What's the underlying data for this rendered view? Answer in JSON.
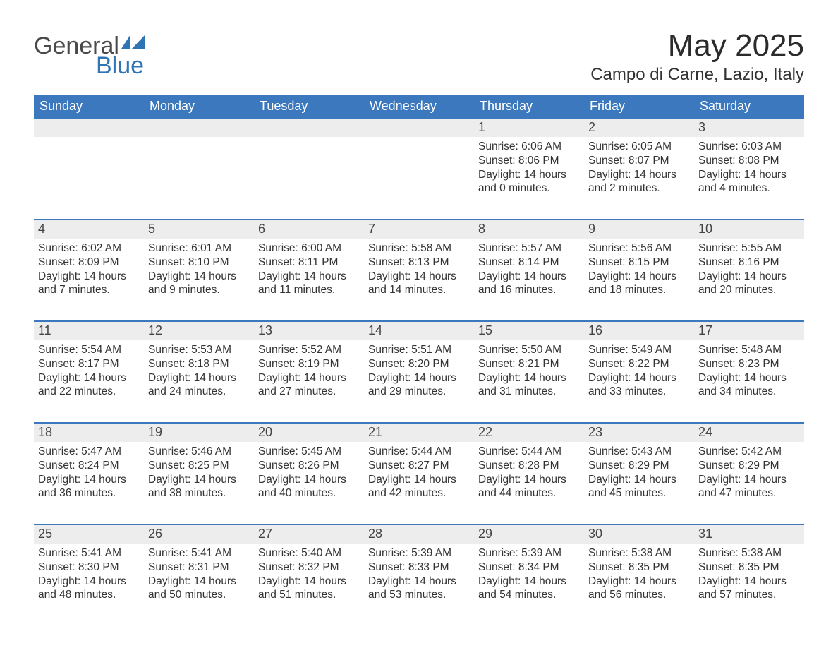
{
  "brand": {
    "word1": "General",
    "word2": "Blue",
    "text_color": "#4a4a4a",
    "accent_color": "#2f74b5"
  },
  "title": "May 2025",
  "location": "Campo di Carne, Lazio, Italy",
  "colors": {
    "header_bg": "#3b78bd",
    "header_text": "#ffffff",
    "daynum_bg": "#ededed",
    "rule": "#3b78bd",
    "body_text": "#333333",
    "page_bg": "#ffffff"
  },
  "typography": {
    "title_fontsize": 44,
    "location_fontsize": 24,
    "weekday_fontsize": 18,
    "daynum_fontsize": 18,
    "body_fontsize": 15.5
  },
  "weekdays": [
    "Sunday",
    "Monday",
    "Tuesday",
    "Wednesday",
    "Thursday",
    "Friday",
    "Saturday"
  ],
  "weeks": [
    [
      {
        "n": "",
        "lines": []
      },
      {
        "n": "",
        "lines": []
      },
      {
        "n": "",
        "lines": []
      },
      {
        "n": "",
        "lines": []
      },
      {
        "n": "1",
        "lines": [
          "Sunrise: 6:06 AM",
          "Sunset: 8:06 PM",
          "Daylight: 14 hours and 0 minutes."
        ]
      },
      {
        "n": "2",
        "lines": [
          "Sunrise: 6:05 AM",
          "Sunset: 8:07 PM",
          "Daylight: 14 hours and 2 minutes."
        ]
      },
      {
        "n": "3",
        "lines": [
          "Sunrise: 6:03 AM",
          "Sunset: 8:08 PM",
          "Daylight: 14 hours and 4 minutes."
        ]
      }
    ],
    [
      {
        "n": "4",
        "lines": [
          "Sunrise: 6:02 AM",
          "Sunset: 8:09 PM",
          "Daylight: 14 hours and 7 minutes."
        ]
      },
      {
        "n": "5",
        "lines": [
          "Sunrise: 6:01 AM",
          "Sunset: 8:10 PM",
          "Daylight: 14 hours and 9 minutes."
        ]
      },
      {
        "n": "6",
        "lines": [
          "Sunrise: 6:00 AM",
          "Sunset: 8:11 PM",
          "Daylight: 14 hours and 11 minutes."
        ]
      },
      {
        "n": "7",
        "lines": [
          "Sunrise: 5:58 AM",
          "Sunset: 8:13 PM",
          "Daylight: 14 hours and 14 minutes."
        ]
      },
      {
        "n": "8",
        "lines": [
          "Sunrise: 5:57 AM",
          "Sunset: 8:14 PM",
          "Daylight: 14 hours and 16 minutes."
        ]
      },
      {
        "n": "9",
        "lines": [
          "Sunrise: 5:56 AM",
          "Sunset: 8:15 PM",
          "Daylight: 14 hours and 18 minutes."
        ]
      },
      {
        "n": "10",
        "lines": [
          "Sunrise: 5:55 AM",
          "Sunset: 8:16 PM",
          "Daylight: 14 hours and 20 minutes."
        ]
      }
    ],
    [
      {
        "n": "11",
        "lines": [
          "Sunrise: 5:54 AM",
          "Sunset: 8:17 PM",
          "Daylight: 14 hours and 22 minutes."
        ]
      },
      {
        "n": "12",
        "lines": [
          "Sunrise: 5:53 AM",
          "Sunset: 8:18 PM",
          "Daylight: 14 hours and 24 minutes."
        ]
      },
      {
        "n": "13",
        "lines": [
          "Sunrise: 5:52 AM",
          "Sunset: 8:19 PM",
          "Daylight: 14 hours and 27 minutes."
        ]
      },
      {
        "n": "14",
        "lines": [
          "Sunrise: 5:51 AM",
          "Sunset: 8:20 PM",
          "Daylight: 14 hours and 29 minutes."
        ]
      },
      {
        "n": "15",
        "lines": [
          "Sunrise: 5:50 AM",
          "Sunset: 8:21 PM",
          "Daylight: 14 hours and 31 minutes."
        ]
      },
      {
        "n": "16",
        "lines": [
          "Sunrise: 5:49 AM",
          "Sunset: 8:22 PM",
          "Daylight: 14 hours and 33 minutes."
        ]
      },
      {
        "n": "17",
        "lines": [
          "Sunrise: 5:48 AM",
          "Sunset: 8:23 PM",
          "Daylight: 14 hours and 34 minutes."
        ]
      }
    ],
    [
      {
        "n": "18",
        "lines": [
          "Sunrise: 5:47 AM",
          "Sunset: 8:24 PM",
          "Daylight: 14 hours and 36 minutes."
        ]
      },
      {
        "n": "19",
        "lines": [
          "Sunrise: 5:46 AM",
          "Sunset: 8:25 PM",
          "Daylight: 14 hours and 38 minutes."
        ]
      },
      {
        "n": "20",
        "lines": [
          "Sunrise: 5:45 AM",
          "Sunset: 8:26 PM",
          "Daylight: 14 hours and 40 minutes."
        ]
      },
      {
        "n": "21",
        "lines": [
          "Sunrise: 5:44 AM",
          "Sunset: 8:27 PM",
          "Daylight: 14 hours and 42 minutes."
        ]
      },
      {
        "n": "22",
        "lines": [
          "Sunrise: 5:44 AM",
          "Sunset: 8:28 PM",
          "Daylight: 14 hours and 44 minutes."
        ]
      },
      {
        "n": "23",
        "lines": [
          "Sunrise: 5:43 AM",
          "Sunset: 8:29 PM",
          "Daylight: 14 hours and 45 minutes."
        ]
      },
      {
        "n": "24",
        "lines": [
          "Sunrise: 5:42 AM",
          "Sunset: 8:29 PM",
          "Daylight: 14 hours and 47 minutes."
        ]
      }
    ],
    [
      {
        "n": "25",
        "lines": [
          "Sunrise: 5:41 AM",
          "Sunset: 8:30 PM",
          "Daylight: 14 hours and 48 minutes."
        ]
      },
      {
        "n": "26",
        "lines": [
          "Sunrise: 5:41 AM",
          "Sunset: 8:31 PM",
          "Daylight: 14 hours and 50 minutes."
        ]
      },
      {
        "n": "27",
        "lines": [
          "Sunrise: 5:40 AM",
          "Sunset: 8:32 PM",
          "Daylight: 14 hours and 51 minutes."
        ]
      },
      {
        "n": "28",
        "lines": [
          "Sunrise: 5:39 AM",
          "Sunset: 8:33 PM",
          "Daylight: 14 hours and 53 minutes."
        ]
      },
      {
        "n": "29",
        "lines": [
          "Sunrise: 5:39 AM",
          "Sunset: 8:34 PM",
          "Daylight: 14 hours and 54 minutes."
        ]
      },
      {
        "n": "30",
        "lines": [
          "Sunrise: 5:38 AM",
          "Sunset: 8:35 PM",
          "Daylight: 14 hours and 56 minutes."
        ]
      },
      {
        "n": "31",
        "lines": [
          "Sunrise: 5:38 AM",
          "Sunset: 8:35 PM",
          "Daylight: 14 hours and 57 minutes."
        ]
      }
    ]
  ]
}
